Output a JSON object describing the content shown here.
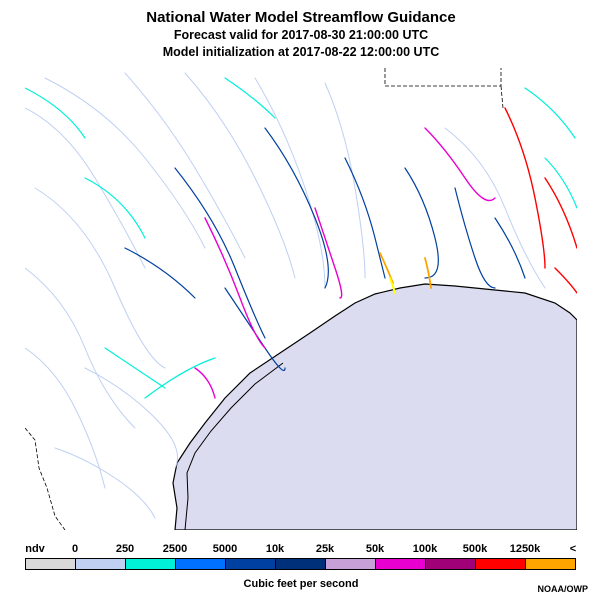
{
  "title": "National Water Model Streamflow Guidance",
  "subtitle1": "Forecast valid for 2017-08-30 21:00:00 UTC",
  "subtitle2": "Model initialization at 2017-08-22 12:00:00 UTC",
  "legend": {
    "labels": [
      "ndv",
      "0",
      "250",
      "2500",
      "5000",
      "10k",
      "25k",
      "50k",
      "100k",
      "500k",
      "1250k",
      "<"
    ],
    "colors": [
      "#d9d9d9",
      "#bfd0f2",
      "#00f0d8",
      "#0070ff",
      "#0040a0",
      "#00307a",
      "#c8a0d8",
      "#e800d0",
      "#a00078",
      "#ff0000",
      "#ffa500",
      "#ffff00"
    ],
    "units": "Cubic feet per second"
  },
  "colors": {
    "ocean": "#dcdcf0",
    "coastline": "#000000"
  },
  "credit": "NOAA/OWP"
}
